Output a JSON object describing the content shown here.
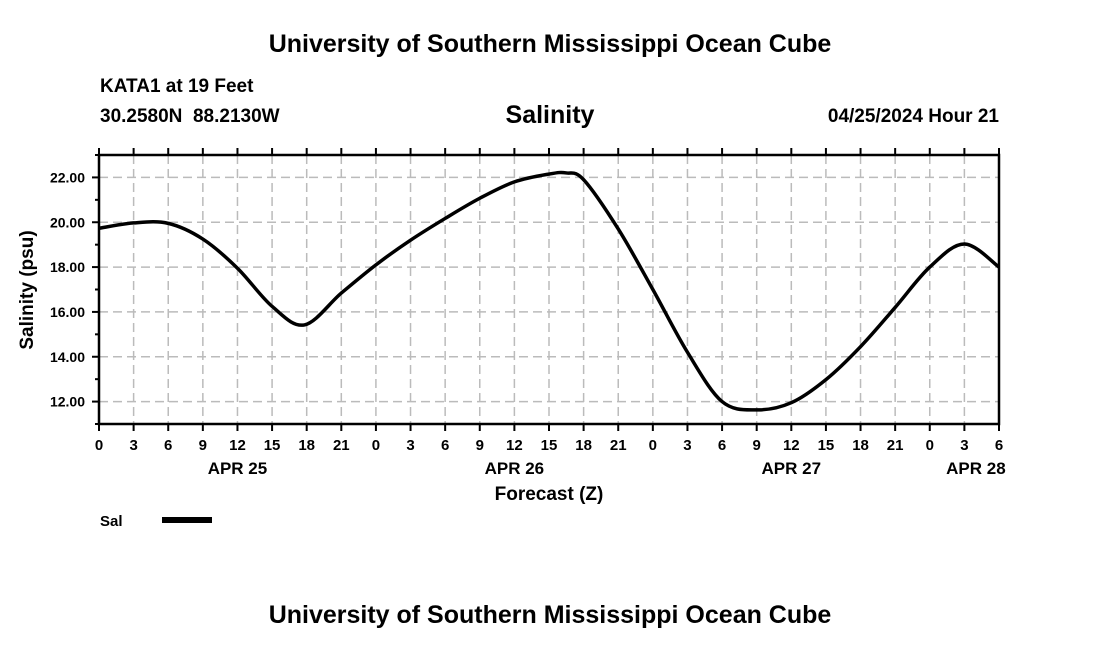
{
  "header": {
    "title": "University of Southern Mississippi Ocean Cube",
    "station": "KATA1 at 19 Feet",
    "coords": "30.2580N  88.2130W",
    "datetime": "04/25/2024 Hour 21",
    "footer": "University of Southern Mississippi Ocean Cube"
  },
  "chart_data": {
    "type": "line",
    "title": "Salinity",
    "xlabel": "Forecast (Z)",
    "ylabel": "Salinity (psu)",
    "xlim": [
      0,
      78
    ],
    "ylim": [
      11,
      23
    ],
    "grid": true,
    "x_tick_labels": [
      "0",
      "3",
      "6",
      "9",
      "12",
      "15",
      "18",
      "21",
      "0",
      "3",
      "6",
      "9",
      "12",
      "15",
      "18",
      "21",
      "0",
      "3",
      "6",
      "9",
      "12",
      "15",
      "18",
      "21",
      "0",
      "3",
      "6"
    ],
    "date_labels": [
      {
        "label": "APR 25",
        "hour": 12
      },
      {
        "label": "APR 26",
        "hour": 36
      },
      {
        "label": "APR 27",
        "hour": 60
      },
      {
        "label": "APR 28",
        "hour": 76
      }
    ],
    "y_tick_labels": [
      "12.00",
      "14.00",
      "16.00",
      "18.00",
      "20.00",
      "22.00"
    ],
    "y_ticks": [
      12,
      14,
      16,
      18,
      20,
      22
    ],
    "legend": {
      "label": "Sal",
      "placement": "bottom-left"
    },
    "series": [
      {
        "name": "Sal",
        "color": "#000000",
        "x": [
          0,
          3,
          6,
          9,
          12,
          15,
          17.8,
          21,
          24,
          27,
          30,
          33,
          36,
          39,
          40.5,
          42,
          45,
          48,
          51,
          54,
          57,
          60,
          63,
          66,
          69,
          72,
          75,
          78
        ],
        "values": [
          19.73,
          19.97,
          19.95,
          19.25,
          17.95,
          16.25,
          15.42,
          16.84,
          18.1,
          19.2,
          20.17,
          21.07,
          21.8,
          22.15,
          22.2,
          21.9,
          19.7,
          17.0,
          14.2,
          12.0,
          11.63,
          11.95,
          12.98,
          14.45,
          16.2,
          18.0,
          19.03,
          18.0
        ]
      }
    ]
  }
}
